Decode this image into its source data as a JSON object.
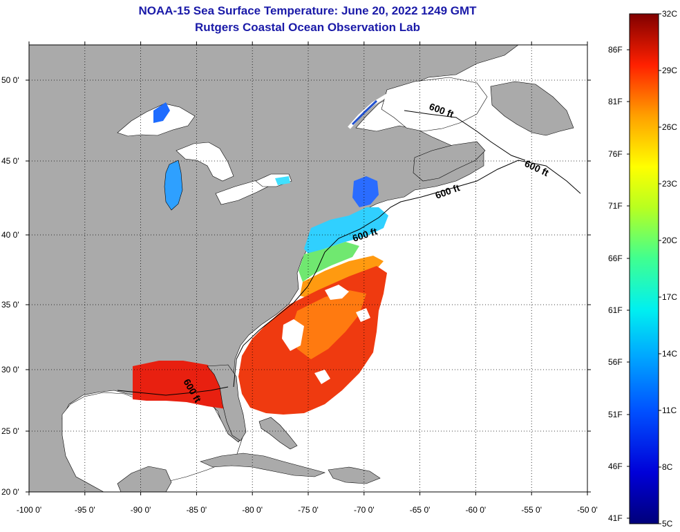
{
  "title": "NOAA-15 Sea Surface Temperature:  June 20, 2022 1249 GMT",
  "subtitle": "Rutgers Coastal Ocean Observation Lab",
  "axes": {
    "lon_ticks": [
      "-100 0'",
      "-95 0'",
      "-90 0'",
      "-85 0'",
      "-80 0'",
      "-75 0'",
      "-70 0'",
      "-65 0'",
      "-60 0'",
      "-55 0'",
      "-50 0'"
    ],
    "lat_ticks": [
      "50 0'",
      "45 0'",
      "40 0'",
      "35 0'",
      "30 0'",
      "25 0'",
      "20 0'"
    ],
    "lon_range": [
      -100,
      -50
    ],
    "lat_range": [
      20,
      52
    ],
    "grid": "dotted"
  },
  "isobath_label": "600 ft",
  "colorbar": {
    "celsius_labels": [
      "32C",
      "29C",
      "26C",
      "23C",
      "20C",
      "17C",
      "14C",
      "11C",
      "8C",
      "5C"
    ],
    "fahrenheit_labels": [
      "86F",
      "81F",
      "76F",
      "71F",
      "66F",
      "61F",
      "56F",
      "51F",
      "46F",
      "41F"
    ],
    "min_c": 5,
    "max_c": 32
  },
  "colors": {
    "land": "#aaaaaa",
    "no_data": "#ffffff",
    "title": "#1a1aa8"
  }
}
